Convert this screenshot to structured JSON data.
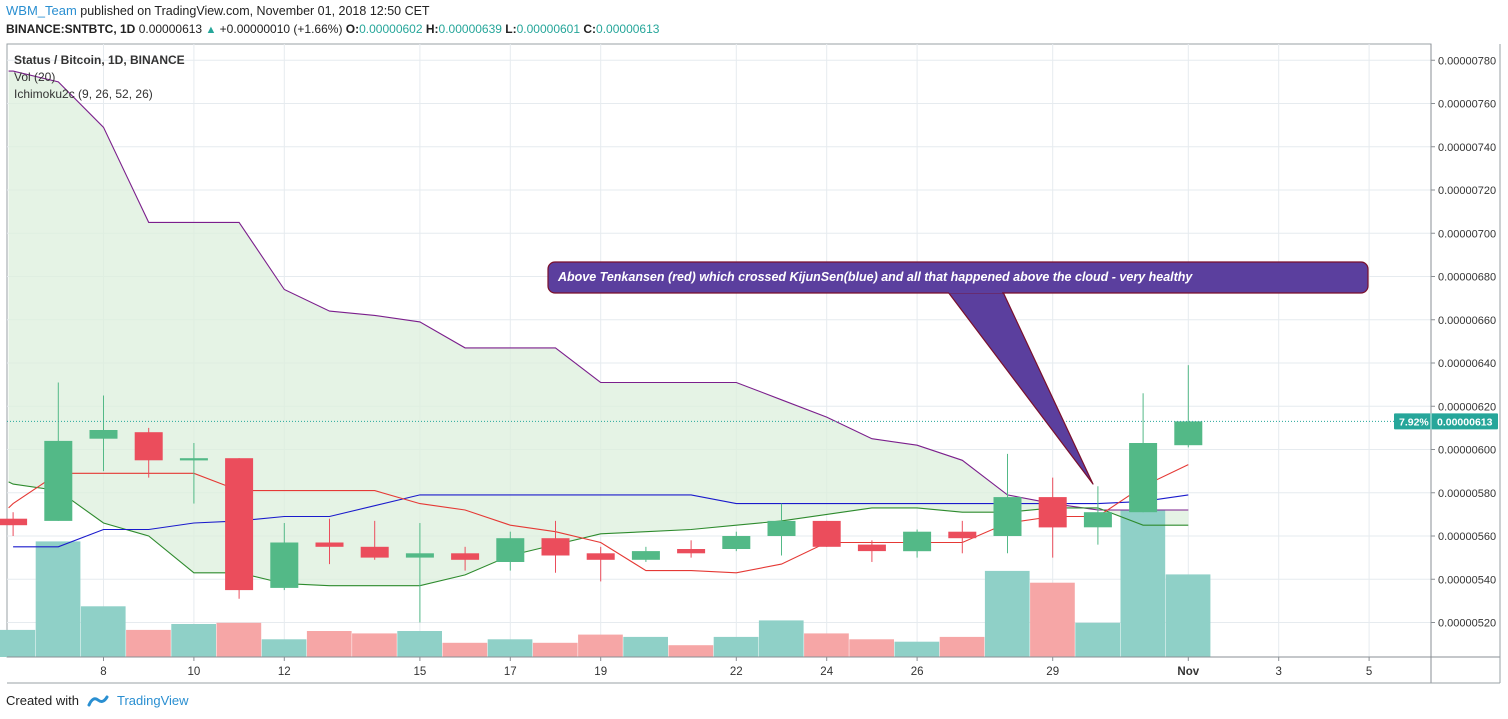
{
  "header": {
    "author": "WBM_Team",
    "published_text": "published on TradingView.com, November 01, 2018 12:50 CET",
    "symbol": "BINANCE:SNTBTC, 1D",
    "last": "0.00000613",
    "up_arrow": "▲",
    "change": "+0.00000010 (+1.66%)",
    "o_label": "O:",
    "o": "0.00000602",
    "h_label": "H:",
    "h": "0.00000639",
    "l_label": "L:",
    "l": "0.00000601",
    "c_label": "C:",
    "c": "0.00000613"
  },
  "legend": {
    "title": "Status / Bitcoin, 1D, BINANCE",
    "vol": "Vol (20)",
    "ichimoku": "Ichimoku2c (9, 26, 52, 26)"
  },
  "annotation": {
    "text": "Above Tenkansen (red) which crossed KijunSen(blue) and all that happened above the cloud - very healthy",
    "color": "#5b3f9e"
  },
  "price_label": {
    "pct": "7.92%",
    "value": "0.00000613"
  },
  "footer": {
    "created_with": "Created with",
    "brand": "TradingView"
  },
  "colors": {
    "up": "#26a69a",
    "down": "#ef5350",
    "candle_up": "#53b987",
    "candle_down": "#eb4d5c",
    "vol_up": "#8fd0c7",
    "vol_down": "#f6a6a6",
    "tenkan": "#e53935",
    "kijun": "#1a1acc",
    "span_a": "#2e8b2e",
    "span_b": "#7b1f8c",
    "cloud": "#dcefdc"
  },
  "chart_data": {
    "type": "candlestick",
    "symbol": "SNTBTC",
    "timeframe": "1D",
    "ylim": [
      5.05e-06,
      7.85e-06
    ],
    "y_ticks": [
      "0.00000520",
      "0.00000540",
      "0.00000560",
      "0.00000580",
      "0.00000600",
      "0.00000620",
      "0.00000640",
      "0.00000660",
      "0.00000680",
      "0.00000700",
      "0.00000720",
      "0.00000740",
      "0.00000760",
      "0.00000780"
    ],
    "x_ticks": [
      {
        "day": 8,
        "label": "8"
      },
      {
        "day": 10,
        "label": "10"
      },
      {
        "day": 12,
        "label": "12"
      },
      {
        "day": 15,
        "label": "15"
      },
      {
        "day": 17,
        "label": "17"
      },
      {
        "day": 19,
        "label": "19"
      },
      {
        "day": 22,
        "label": "22"
      },
      {
        "day": 24,
        "label": "24"
      },
      {
        "day": 26,
        "label": "26"
      },
      {
        "day": 29,
        "label": "29"
      },
      {
        "day": 32,
        "label": "Nov"
      },
      {
        "day": 34,
        "label": "3"
      },
      {
        "day": 36,
        "label": "5"
      }
    ],
    "candles": [
      {
        "day": 6,
        "o": 5.68e-06,
        "h": 5.71e-06,
        "l": 5.6e-06,
        "c": 5.65e-06
      },
      {
        "day": 7,
        "o": 5.67e-06,
        "h": 6.31e-06,
        "l": 5.67e-06,
        "c": 6.04e-06
      },
      {
        "day": 8,
        "o": 6.05e-06,
        "h": 6.25e-06,
        "l": 5.9e-06,
        "c": 6.09e-06
      },
      {
        "day": 9,
        "o": 6.08e-06,
        "h": 6.1e-06,
        "l": 5.87e-06,
        "c": 5.95e-06
      },
      {
        "day": 10,
        "o": 5.95e-06,
        "h": 6.03e-06,
        "l": 5.75e-06,
        "c": 5.96e-06
      },
      {
        "day": 11,
        "o": 5.96e-06,
        "h": 5.96e-06,
        "l": 5.31e-06,
        "c": 5.35e-06
      },
      {
        "day": 12,
        "o": 5.36e-06,
        "h": 5.66e-06,
        "l": 5.35e-06,
        "c": 5.57e-06
      },
      {
        "day": 13,
        "o": 5.57e-06,
        "h": 5.68e-06,
        "l": 5.47e-06,
        "c": 5.55e-06
      },
      {
        "day": 14,
        "o": 5.55e-06,
        "h": 5.67e-06,
        "l": 5.49e-06,
        "c": 5.5e-06
      },
      {
        "day": 15,
        "o": 5.5e-06,
        "h": 5.66e-06,
        "l": 5.2e-06,
        "c": 5.52e-06
      },
      {
        "day": 16,
        "o": 5.52e-06,
        "h": 5.55e-06,
        "l": 5.44e-06,
        "c": 5.49e-06
      },
      {
        "day": 17,
        "o": 5.48e-06,
        "h": 5.62e-06,
        "l": 5.44e-06,
        "c": 5.59e-06
      },
      {
        "day": 18,
        "o": 5.59e-06,
        "h": 5.67e-06,
        "l": 5.43e-06,
        "c": 5.51e-06
      },
      {
        "day": 19,
        "o": 5.52e-06,
        "h": 5.55e-06,
        "l": 5.39e-06,
        "c": 5.49e-06
      },
      {
        "day": 20,
        "o": 5.49e-06,
        "h": 5.55e-06,
        "l": 5.48e-06,
        "c": 5.53e-06
      },
      {
        "day": 21,
        "o": 5.54e-06,
        "h": 5.58e-06,
        "l": 5.5e-06,
        "c": 5.52e-06
      },
      {
        "day": 22,
        "o": 5.54e-06,
        "h": 5.62e-06,
        "l": 5.53e-06,
        "c": 5.6e-06
      },
      {
        "day": 23,
        "o": 5.6e-06,
        "h": 5.75e-06,
        "l": 5.51e-06,
        "c": 5.67e-06
      },
      {
        "day": 24,
        "o": 5.67e-06,
        "h": 5.67e-06,
        "l": 5.55e-06,
        "c": 5.55e-06
      },
      {
        "day": 25,
        "o": 5.56e-06,
        "h": 5.58e-06,
        "l": 5.48e-06,
        "c": 5.53e-06
      },
      {
        "day": 26,
        "o": 5.53e-06,
        "h": 5.63e-06,
        "l": 5.5e-06,
        "c": 5.62e-06
      },
      {
        "day": 27,
        "o": 5.62e-06,
        "h": 5.67e-06,
        "l": 5.52e-06,
        "c": 5.59e-06
      },
      {
        "day": 28,
        "o": 5.6e-06,
        "h": 5.98e-06,
        "l": 5.52e-06,
        "c": 5.78e-06
      },
      {
        "day": 29,
        "o": 5.78e-06,
        "h": 5.87e-06,
        "l": 5.5e-06,
        "c": 5.64e-06
      },
      {
        "day": 30,
        "o": 5.64e-06,
        "h": 5.83e-06,
        "l": 5.56e-06,
        "c": 5.71e-06
      },
      {
        "day": 31,
        "o": 5.71e-06,
        "h": 6.26e-06,
        "l": 5.71e-06,
        "c": 6.03e-06
      },
      {
        "day": 32,
        "o": 6.02e-06,
        "h": 6.39e-06,
        "l": 6.01e-06,
        "c": 6.13e-06
      }
    ],
    "volume_scale_max": 1.0,
    "volumes": [
      {
        "day": 6,
        "v": 0.23,
        "dir": "up"
      },
      {
        "day": 7,
        "v": 0.98,
        "dir": "up"
      },
      {
        "day": 8,
        "v": 0.43,
        "dir": "up"
      },
      {
        "day": 9,
        "v": 0.23,
        "dir": "down"
      },
      {
        "day": 10,
        "v": 0.28,
        "dir": "up"
      },
      {
        "day": 11,
        "v": 0.29,
        "dir": "down"
      },
      {
        "day": 12,
        "v": 0.15,
        "dir": "up"
      },
      {
        "day": 13,
        "v": 0.22,
        "dir": "down"
      },
      {
        "day": 14,
        "v": 0.2,
        "dir": "down"
      },
      {
        "day": 15,
        "v": 0.22,
        "dir": "up"
      },
      {
        "day": 16,
        "v": 0.12,
        "dir": "down"
      },
      {
        "day": 17,
        "v": 0.15,
        "dir": "up"
      },
      {
        "day": 18,
        "v": 0.12,
        "dir": "down"
      },
      {
        "day": 19,
        "v": 0.19,
        "dir": "down"
      },
      {
        "day": 20,
        "v": 0.17,
        "dir": "up"
      },
      {
        "day": 21,
        "v": 0.1,
        "dir": "down"
      },
      {
        "day": 22,
        "v": 0.17,
        "dir": "up"
      },
      {
        "day": 23,
        "v": 0.31,
        "dir": "up"
      },
      {
        "day": 24,
        "v": 0.2,
        "dir": "down"
      },
      {
        "day": 25,
        "v": 0.15,
        "dir": "down"
      },
      {
        "day": 26,
        "v": 0.13,
        "dir": "up"
      },
      {
        "day": 27,
        "v": 0.17,
        "dir": "down"
      },
      {
        "day": 28,
        "v": 0.73,
        "dir": "up"
      },
      {
        "day": 29,
        "v": 0.63,
        "dir": "down"
      },
      {
        "day": 30,
        "v": 0.29,
        "dir": "up"
      },
      {
        "day": 31,
        "v": 1.25,
        "dir": "up"
      },
      {
        "day": 32,
        "v": 0.7,
        "dir": "up"
      }
    ],
    "tenkan_sen": [
      [
        5.9,
        5.73e-06
      ],
      [
        6,
        5.75e-06
      ],
      [
        7,
        5.89e-06
      ],
      [
        8,
        5.89e-06
      ],
      [
        9,
        5.89e-06
      ],
      [
        10,
        5.89e-06
      ],
      [
        11,
        5.81e-06
      ],
      [
        12,
        5.81e-06
      ],
      [
        13,
        5.81e-06
      ],
      [
        14,
        5.81e-06
      ],
      [
        15,
        5.75e-06
      ],
      [
        16,
        5.72e-06
      ],
      [
        17,
        5.65e-06
      ],
      [
        18,
        5.62e-06
      ],
      [
        19,
        5.57e-06
      ],
      [
        20,
        5.44e-06
      ],
      [
        21,
        5.44e-06
      ],
      [
        22,
        5.43e-06
      ],
      [
        23,
        5.47e-06
      ],
      [
        24,
        5.57e-06
      ],
      [
        25,
        5.57e-06
      ],
      [
        26,
        5.57e-06
      ],
      [
        27,
        5.57e-06
      ],
      [
        28,
        5.66e-06
      ],
      [
        29,
        5.69e-06
      ],
      [
        30,
        5.69e-06
      ],
      [
        31,
        5.83e-06
      ],
      [
        32,
        5.93e-06
      ]
    ],
    "kijun_sen": [
      [
        6,
        5.55e-06
      ],
      [
        7,
        5.55e-06
      ],
      [
        8,
        5.63e-06
      ],
      [
        9,
        5.63e-06
      ],
      [
        10,
        5.66e-06
      ],
      [
        11,
        5.67e-06
      ],
      [
        12,
        5.69e-06
      ],
      [
        13,
        5.69e-06
      ],
      [
        14,
        5.74e-06
      ],
      [
        15,
        5.79e-06
      ],
      [
        16,
        5.79e-06
      ],
      [
        17,
        5.79e-06
      ],
      [
        18,
        5.79e-06
      ],
      [
        19,
        5.79e-06
      ],
      [
        20,
        5.79e-06
      ],
      [
        21,
        5.79e-06
      ],
      [
        22,
        5.75e-06
      ],
      [
        23,
        5.75e-06
      ],
      [
        24,
        5.75e-06
      ],
      [
        25,
        5.75e-06
      ],
      [
        26,
        5.75e-06
      ],
      [
        27,
        5.75e-06
      ],
      [
        28,
        5.75e-06
      ],
      [
        29,
        5.75e-06
      ],
      [
        30,
        5.75e-06
      ],
      [
        31,
        5.76e-06
      ],
      [
        32,
        5.79e-06
      ]
    ],
    "senkou_span_a": [
      [
        5.9,
        5.85e-06
      ],
      [
        6,
        5.84e-06
      ],
      [
        7,
        5.81e-06
      ],
      [
        8,
        5.66e-06
      ],
      [
        9,
        5.6e-06
      ],
      [
        10,
        5.43e-06
      ],
      [
        11,
        5.43e-06
      ],
      [
        12,
        5.38e-06
      ],
      [
        13,
        5.37e-06
      ],
      [
        14,
        5.37e-06
      ],
      [
        15,
        5.37e-06
      ],
      [
        16,
        5.42e-06
      ],
      [
        17,
        5.51e-06
      ],
      [
        18,
        5.56e-06
      ],
      [
        19,
        5.61e-06
      ],
      [
        20,
        5.62e-06
      ],
      [
        21,
        5.63e-06
      ],
      [
        22,
        5.65e-06
      ],
      [
        23,
        5.67e-06
      ],
      [
        24,
        5.7e-06
      ],
      [
        25,
        5.73e-06
      ],
      [
        26,
        5.73e-06
      ],
      [
        27,
        5.71e-06
      ],
      [
        28,
        5.71e-06
      ],
      [
        29,
        5.73e-06
      ],
      [
        30,
        5.73e-06
      ],
      [
        31,
        5.65e-06
      ],
      [
        32,
        5.65e-06
      ]
    ],
    "senkou_span_b": [
      [
        5.9,
        7.75e-06
      ],
      [
        6,
        7.75e-06
      ],
      [
        7,
        7.7e-06
      ],
      [
        8,
        7.49e-06
      ],
      [
        9,
        7.05e-06
      ],
      [
        10,
        7.05e-06
      ],
      [
        11,
        7.05e-06
      ],
      [
        12,
        6.74e-06
      ],
      [
        13,
        6.64e-06
      ],
      [
        14,
        6.62e-06
      ],
      [
        15,
        6.59e-06
      ],
      [
        16,
        6.47e-06
      ],
      [
        17,
        6.47e-06
      ],
      [
        18,
        6.47e-06
      ],
      [
        19,
        6.31e-06
      ],
      [
        20,
        6.31e-06
      ],
      [
        21,
        6.31e-06
      ],
      [
        22,
        6.31e-06
      ],
      [
        23,
        6.23e-06
      ],
      [
        24,
        6.15e-06
      ],
      [
        25,
        6.05e-06
      ],
      [
        26,
        6.02e-06
      ],
      [
        27,
        5.95e-06
      ],
      [
        28,
        5.79e-06
      ],
      [
        29,
        5.75e-06
      ],
      [
        30,
        5.72e-06
      ],
      [
        31,
        5.72e-06
      ],
      [
        32,
        5.72e-06
      ]
    ],
    "last_price": 6.13e-06,
    "grid": true
  }
}
